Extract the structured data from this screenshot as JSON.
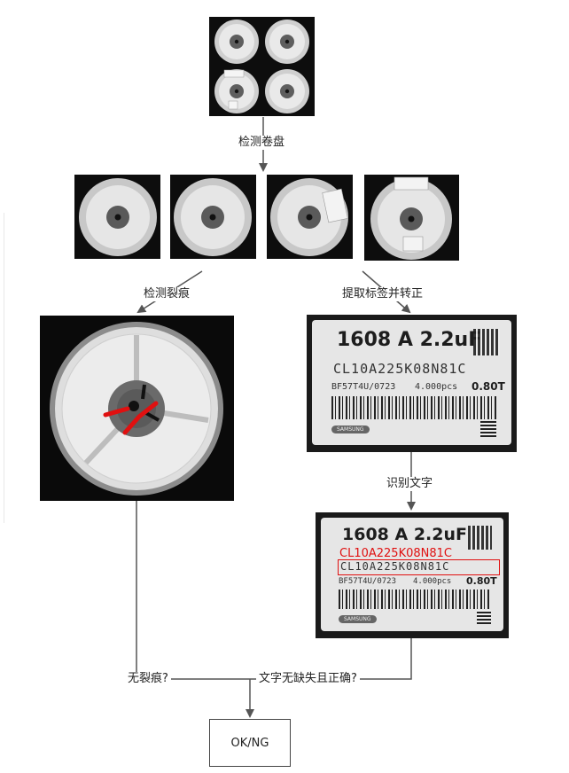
{
  "flow": {
    "step_detect_reel": "检测卷盘",
    "step_detect_crack": "检测裂痕",
    "step_extract_label": "提取标签并转正",
    "step_ocr": "识别文字",
    "cond_no_crack": "无裂痕?",
    "cond_text_ok": "文字无缺失且正确?",
    "result": "OK/NG"
  },
  "label": {
    "title": "1608 A 2.2uF",
    "part_no": "CL10A225K08N81C",
    "lot": "BF57T4U/0723",
    "qty": "4.000pcs",
    "thickness": "0.80T",
    "brand": "SAMSUNG"
  },
  "ocr_result": "CL10A225K08N81C",
  "colors": {
    "arrow": "#555555",
    "ocr": "#e01010",
    "crack": "#e01010"
  }
}
